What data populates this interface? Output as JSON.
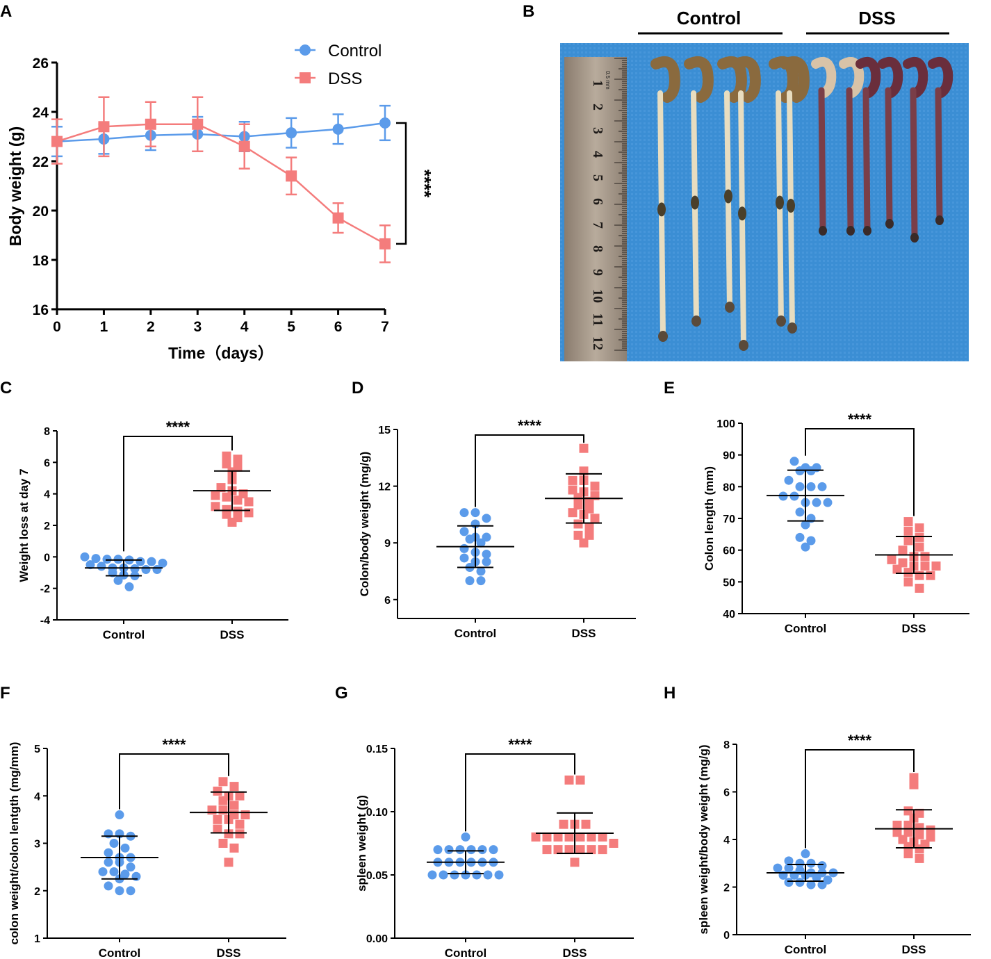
{
  "colors": {
    "control": "#5B9BEA",
    "dss": "#F47C7C",
    "axis": "#000000",
    "photo_bg": "#3D8FD6"
  },
  "chart_data": [
    {
      "id": "A",
      "type": "line",
      "ylabel": "Body weight (g)",
      "xlabel": "Time（days）",
      "x": [
        0,
        1,
        2,
        3,
        4,
        5,
        6,
        7
      ],
      "xlim": [
        0,
        7
      ],
      "ylim": [
        16,
        26
      ],
      "xticks": [
        0,
        1,
        2,
        3,
        4,
        5,
        6,
        7
      ],
      "yticks": [
        16,
        18,
        20,
        22,
        24,
        26
      ],
      "series": [
        {
          "name": "Control",
          "marker": "circle",
          "values": [
            22.8,
            22.9,
            23.05,
            23.1,
            23.0,
            23.15,
            23.3,
            23.55
          ],
          "err": [
            0.6,
            0.6,
            0.6,
            0.7,
            0.6,
            0.6,
            0.6,
            0.7
          ]
        },
        {
          "name": "DSS",
          "marker": "square",
          "values": [
            22.8,
            23.4,
            23.5,
            23.5,
            22.6,
            21.4,
            19.7,
            18.65
          ],
          "err": [
            0.9,
            1.2,
            0.9,
            1.1,
            0.9,
            0.75,
            0.6,
            0.75
          ]
        }
      ],
      "significance": "****"
    },
    {
      "id": "C",
      "type": "scatter",
      "ylabel": "Weight loss at day 7",
      "ylim": [
        -4,
        8
      ],
      "yticks": [
        -4,
        -2,
        0,
        2,
        4,
        6,
        8
      ],
      "categories": [
        "Control",
        "DSS"
      ],
      "groups": [
        {
          "values": [
            0.0,
            -0.1,
            -0.15,
            -0.15,
            -0.2,
            -0.3,
            -0.3,
            -0.4,
            -0.5,
            -0.6,
            -0.7,
            -0.7,
            -0.75,
            -0.8,
            -0.8,
            -1.0,
            -1.15,
            -1.2,
            -1.5,
            -1.9
          ],
          "mean": -0.7,
          "sd": 0.5
        },
        {
          "values": [
            6.4,
            6.2,
            5.9,
            5.7,
            5.4,
            4.9,
            4.4,
            4.2,
            4.0,
            3.9,
            3.8,
            3.6,
            3.5,
            3.2,
            3.0,
            2.9,
            2.7,
            2.5,
            2.2,
            2.8
          ],
          "mean": 4.2,
          "sd": 1.25
        }
      ],
      "significance": "****"
    },
    {
      "id": "D",
      "type": "scatter",
      "ylabel": "Colon/body weight (mg/g)",
      "ylim": [
        5,
        15
      ],
      "yticks": [
        6,
        9,
        12,
        15
      ],
      "categories": [
        "Control",
        "DSS"
      ],
      "groups": [
        {
          "values": [
            10.6,
            10.6,
            10.3,
            10.0,
            9.6,
            9.3,
            9.3,
            9.0,
            8.7,
            8.5,
            8.4,
            8.0,
            8.0,
            7.7,
            7.5,
            7.0,
            7.0,
            9.2,
            8.2
          ],
          "mean": 8.8,
          "sd": 1.1
        },
        {
          "values": [
            14.0,
            12.8,
            12.3,
            12.3,
            12.0,
            11.8,
            11.7,
            11.5,
            11.4,
            11.2,
            11.0,
            10.8,
            10.6,
            10.5,
            10.3,
            10.0,
            9.8,
            9.4,
            9.4,
            9.0
          ],
          "mean": 11.35,
          "sd": 1.3
        }
      ],
      "significance": "****"
    },
    {
      "id": "E",
      "type": "scatter",
      "ylabel": "Colon length (mm)",
      "ylim": [
        40,
        100
      ],
      "yticks": [
        40,
        50,
        60,
        70,
        80,
        90,
        100
      ],
      "categories": [
        "Control",
        "DSS"
      ],
      "groups": [
        {
          "values": [
            88,
            86,
            86,
            85,
            85,
            82,
            80,
            80,
            80,
            77,
            77,
            75,
            75,
            75,
            72,
            70,
            68,
            64,
            63,
            61
          ],
          "mean": 77.2,
          "sd": 8
        },
        {
          "values": [
            69,
            67,
            66,
            64,
            63,
            61,
            60,
            58,
            58,
            57,
            56,
            55,
            55,
            55,
            54,
            53,
            52,
            52,
            50,
            48
          ],
          "mean": 58.5,
          "sd": 5.8
        }
      ],
      "significance": "****"
    },
    {
      "id": "F",
      "type": "scatter",
      "ylabel": "colon weight/colon lentgth (mg/mm)",
      "ylim": [
        1,
        5
      ],
      "yticks": [
        1,
        2,
        3,
        4,
        5
      ],
      "categories": [
        "Control",
        "DSS"
      ],
      "groups": [
        {
          "values": [
            3.6,
            3.2,
            3.2,
            3.15,
            3.0,
            2.9,
            2.8,
            2.7,
            2.6,
            2.6,
            2.5,
            2.4,
            2.4,
            2.35,
            2.3,
            2.25,
            2.1,
            2.0,
            2.0,
            2.7
          ],
          "mean": 2.7,
          "sd": 0.45
        },
        {
          "values": [
            4.3,
            4.2,
            4.1,
            4.0,
            4.0,
            3.9,
            3.8,
            3.7,
            3.7,
            3.6,
            3.6,
            3.5,
            3.5,
            3.4,
            3.3,
            3.2,
            3.2,
            3.0,
            2.9,
            2.6
          ],
          "mean": 3.65,
          "sd": 0.43
        }
      ],
      "significance": "****"
    },
    {
      "id": "G",
      "type": "scatter",
      "ylabel": "spleen weight (g)",
      "ylim": [
        0,
        0.15
      ],
      "yticks": [
        0.0,
        0.05,
        0.1,
        0.15
      ],
      "categories": [
        "Control",
        "DSS"
      ],
      "groups": [
        {
          "values": [
            0.08,
            0.07,
            0.07,
            0.07,
            0.07,
            0.07,
            0.07,
            0.06,
            0.06,
            0.06,
            0.06,
            0.06,
            0.06,
            0.05,
            0.05,
            0.05,
            0.05,
            0.05,
            0.05,
            0.05
          ],
          "mean": 0.06,
          "sd": 0.009
        },
        {
          "values": [
            0.125,
            0.125,
            0.09,
            0.09,
            0.09,
            0.08,
            0.08,
            0.08,
            0.08,
            0.08,
            0.08,
            0.08,
            0.07,
            0.07,
            0.07,
            0.07,
            0.07,
            0.07,
            0.06,
            0.075
          ],
          "mean": 0.083,
          "sd": 0.016
        }
      ],
      "significance": "****"
    },
    {
      "id": "H",
      "type": "scatter",
      "ylabel": "spleen weight/body weight (mg/g)",
      "ylim": [
        0,
        8
      ],
      "yticks": [
        0,
        2,
        4,
        6,
        8
      ],
      "categories": [
        "Control",
        "DSS"
      ],
      "groups": [
        {
          "values": [
            3.4,
            3.1,
            3.0,
            3.0,
            2.9,
            2.8,
            2.8,
            2.7,
            2.6,
            2.6,
            2.6,
            2.5,
            2.5,
            2.5,
            2.4,
            2.3,
            2.2,
            2.2,
            2.1,
            2.1
          ],
          "mean": 2.6,
          "sd": 0.35
        },
        {
          "values": [
            6.6,
            6.3,
            5.2,
            5.1,
            4.9,
            4.6,
            4.6,
            4.5,
            4.4,
            4.3,
            4.3,
            4.2,
            4.1,
            4.0,
            3.9,
            3.8,
            3.7,
            3.6,
            3.4,
            3.2
          ],
          "mean": 4.45,
          "sd": 0.8
        }
      ],
      "significance": "****"
    }
  ],
  "panelB": {
    "label": "B",
    "groups": [
      "Control",
      "DSS"
    ],
    "ruler_numbers": [
      "1",
      "2",
      "3",
      "4",
      "5",
      "6",
      "7",
      "8",
      "9",
      "10",
      "11",
      "12"
    ],
    "ruler_unit": "0.5 mm"
  }
}
